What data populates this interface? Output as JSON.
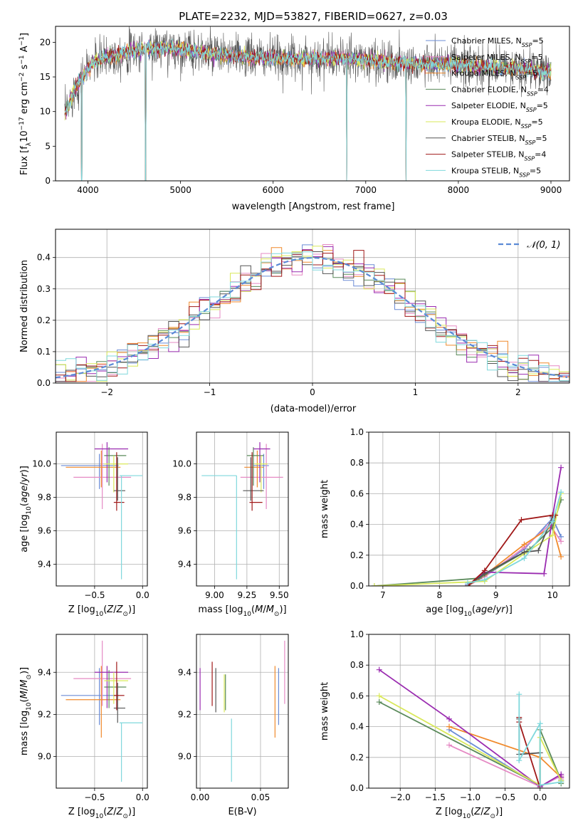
{
  "title": "PLATE=2232, MJD=53827, FIBERID=0627, z=0.03",
  "colors": {
    "Chabrier MILES": "#6b8cd6",
    "Salpeter MILES": "#e58ac4",
    "Kroupa MILES": "#f08a2c",
    "Chabrier ELODIE": "#5a8a5a",
    "Salpeter ELODIE": "#9a2bb0",
    "Kroupa ELODIE": "#d9e85a",
    "Chabrier STELIB": "#555555",
    "Salpeter STELIB": "#a01818",
    "Kroupa STELIB": "#7fd8dc"
  },
  "legend_spectrum": [
    {
      "name": "Chabrier MILES",
      "label_pre": "Chabrier MILES, N",
      "label_sub": "SSP",
      "label_post": "=5"
    },
    {
      "name": "Salpeter MILES",
      "label_pre": "Salpeter MILES, N",
      "label_sub": "SSP",
      "label_post": "=5"
    },
    {
      "name": "Kroupa MILES",
      "label_pre": "Kroupa MILES, N",
      "label_sub": "SSP",
      "label_post": "=5"
    },
    {
      "name": "Chabrier ELODIE",
      "label_pre": "Chabrier ELODIE, N",
      "label_sub": "SSP",
      "label_post": "=4"
    },
    {
      "name": "Salpeter ELODIE",
      "label_pre": "Salpeter ELODIE, N",
      "label_sub": "SSP",
      "label_post": "=5"
    },
    {
      "name": "Kroupa ELODIE",
      "label_pre": "Kroupa ELODIE, N",
      "label_sub": "SSP",
      "label_post": "=5"
    },
    {
      "name": "Chabrier STELIB",
      "label_pre": "Chabrier STELIB, N",
      "label_sub": "SSP",
      "label_post": "=5"
    },
    {
      "name": "Salpeter STELIB",
      "label_pre": "Salpeter STELIB, N",
      "label_sub": "SSP",
      "label_post": "=4"
    },
    {
      "name": "Kroupa STELIB",
      "label_pre": "Kroupa STELIB, N",
      "label_sub": "SSP",
      "label_post": "=5"
    }
  ],
  "chart_data": [
    {
      "id": "spectrum",
      "type": "line",
      "xlabel": "wavelength [Angstrom, rest frame]",
      "ylabel": "Flux [fλ10⁻¹⁷ erg cm⁻² s⁻¹ A⁻¹]",
      "xlim": [
        3650,
        9200
      ],
      "ylim": [
        0,
        22.3
      ],
      "xticks": [
        4000,
        5000,
        6000,
        7000,
        8000,
        9000
      ],
      "yticks": [
        0,
        5,
        10,
        15,
        20
      ],
      "continuum": {
        "x": [
          3750,
          3850,
          3950,
          4050,
          4200,
          4400,
          4600,
          4800,
          5000,
          5200,
          5400,
          5600,
          5800,
          6000,
          6200,
          6400,
          6600,
          6800,
          7000,
          7200,
          7400,
          7600,
          7800,
          8000,
          8200,
          8400,
          8600,
          8800,
          9000
        ],
        "y": [
          9.5,
          13.0,
          15.2,
          17.0,
          17.8,
          18.5,
          19.0,
          19.2,
          19.0,
          18.6,
          18.2,
          18.0,
          17.8,
          17.7,
          17.6,
          17.7,
          17.7,
          17.6,
          17.4,
          17.2,
          17.0,
          16.9,
          16.8,
          16.7,
          16.5,
          16.3,
          16.2,
          16.0,
          15.8
        ]
      },
      "dips": [
        {
          "x": 3934,
          "y": 0
        },
        {
          "x": 4622,
          "y": 0
        },
        {
          "x": 6795,
          "y": 0
        },
        {
          "x": 7435,
          "y": 0
        }
      ]
    },
    {
      "id": "residuals",
      "type": "histogram",
      "xlabel": "(data-model)/error",
      "ylabel": "Normed distribution",
      "xlim": [
        -2.5,
        2.5
      ],
      "ylim": [
        0,
        0.49
      ],
      "xticks": [
        -2,
        -1,
        0,
        1,
        2
      ],
      "yticks": [
        0.0,
        0.1,
        0.2,
        0.3,
        0.4
      ],
      "bin_width": 0.1,
      "reference_label": "𝒩(0, 1)",
      "reference_curve": "normal(0,1)"
    },
    {
      "id": "age-vs-Z",
      "type": "errorbar",
      "xlabel": "Z [log10(Z/Z⊙)]",
      "ylabel": "age  [log10(age/yr)]",
      "xlim": [
        -0.9,
        0.05
      ],
      "ylim": [
        9.27,
        10.19
      ],
      "xticks": [
        -0.5,
        0.0
      ],
      "yticks": [
        9.4,
        9.6,
        9.8,
        10.0
      ],
      "points": [
        {
          "model": "Chabrier MILES",
          "x": -0.45,
          "y": 9.99,
          "xerr": [
            0.4,
            0.2
          ],
          "yerr": [
            0.14,
            0.07
          ]
        },
        {
          "model": "Salpeter MILES",
          "x": -0.42,
          "y": 9.92,
          "xerr": [
            0.3,
            0.3
          ],
          "yerr": [
            0.19,
            0.2
          ]
        },
        {
          "model": "Kroupa MILES",
          "x": -0.43,
          "y": 9.98,
          "xerr": [
            0.37,
            0.2
          ],
          "yerr": [
            0.12,
            0.1
          ]
        },
        {
          "model": "Chabrier ELODIE",
          "x": -0.35,
          "y": 10.05,
          "xerr": [
            0.05,
            0.18
          ],
          "yerr": [
            0.18,
            0.05
          ]
        },
        {
          "model": "Salpeter ELODIE",
          "x": -0.37,
          "y": 10.09,
          "xerr": [
            0.13,
            0.22
          ],
          "yerr": [
            0.2,
            0.04
          ]
        },
        {
          "model": "Kroupa ELODIE",
          "x": -0.3,
          "y": 10.0,
          "xerr": [
            0.1,
            0.15
          ],
          "yerr": [
            0.17,
            0.05
          ]
        },
        {
          "model": "Chabrier STELIB",
          "x": -0.26,
          "y": 9.84,
          "xerr": [
            0.04,
            0.08
          ],
          "yerr": [
            0.06,
            0.2
          ]
        },
        {
          "model": "Salpeter STELIB",
          "x": -0.27,
          "y": 9.77,
          "xerr": [
            0.03,
            0.08
          ],
          "yerr": [
            0.05,
            0.3
          ]
        },
        {
          "model": "Kroupa STELIB",
          "x": -0.22,
          "y": 9.93,
          "xerr": [
            0.02,
            0.22
          ],
          "yerr": [
            0.62,
            0.0
          ]
        }
      ]
    },
    {
      "id": "age-vs-mass",
      "type": "errorbar",
      "xlabel": "mass [log10(M/M⊙)]",
      "ylabel": "",
      "xlim": [
        8.86,
        9.57
      ],
      "ylim": [
        9.27,
        10.19
      ],
      "xticks": [
        9.0,
        9.25,
        9.5
      ],
      "yticks": [
        9.4,
        9.6,
        9.8,
        10.0
      ],
      "points": [
        {
          "model": "Chabrier MILES",
          "x": 9.38,
          "y": 9.99,
          "xerr": [
            0.08,
            0.04
          ],
          "yerr": [
            0.14,
            0.07
          ]
        },
        {
          "model": "Salpeter MILES",
          "x": 9.4,
          "y": 9.92,
          "xerr": [
            0.2,
            0.13
          ],
          "yerr": [
            0.19,
            0.2
          ]
        },
        {
          "model": "Kroupa MILES",
          "x": 9.33,
          "y": 9.98,
          "xerr": [
            0.1,
            0.05
          ],
          "yerr": [
            0.12,
            0.1
          ]
        },
        {
          "model": "Chabrier ELODIE",
          "x": 9.3,
          "y": 10.05,
          "xerr": [
            0.05,
            0.08
          ],
          "yerr": [
            0.18,
            0.05
          ]
        },
        {
          "model": "Salpeter ELODIE",
          "x": 9.35,
          "y": 10.09,
          "xerr": [
            0.05,
            0.08
          ],
          "yerr": [
            0.2,
            0.04
          ]
        },
        {
          "model": "Kroupa ELODIE",
          "x": 9.36,
          "y": 10.0,
          "xerr": [
            0.05,
            0.05
          ],
          "yerr": [
            0.17,
            0.05
          ]
        },
        {
          "model": "Chabrier STELIB",
          "x": 9.28,
          "y": 9.84,
          "xerr": [
            0.06,
            0.1
          ],
          "yerr": [
            0.06,
            0.2
          ]
        },
        {
          "model": "Salpeter STELIB",
          "x": 9.29,
          "y": 9.77,
          "xerr": [
            0.02,
            0.08
          ],
          "yerr": [
            0.05,
            0.3
          ]
        },
        {
          "model": "Kroupa STELIB",
          "x": 9.17,
          "y": 9.93,
          "xerr": [
            0.27,
            0.0
          ],
          "yerr": [
            0.62,
            0.0
          ]
        }
      ]
    },
    {
      "id": "weight-vs-age",
      "type": "line",
      "xlabel": "age  [log10(age/yr)]",
      "ylabel": "mass weight",
      "xlim": [
        6.75,
        10.3
      ],
      "ylim": [
        0,
        1.0
      ],
      "xticks": [
        7,
        8,
        9,
        10
      ],
      "yticks": [
        0.0,
        0.2,
        0.4,
        0.6,
        0.8,
        1.0
      ],
      "series": [
        {
          "model": "Chabrier MILES",
          "x": [
            8.5,
            8.8,
            9.5,
            10.0,
            10.15
          ],
          "y": [
            0.01,
            0.06,
            0.24,
            0.44,
            0.32
          ]
        },
        {
          "model": "Salpeter MILES",
          "x": [
            8.5,
            8.8,
            9.5,
            9.95,
            10.15
          ],
          "y": [
            0.0,
            0.06,
            0.25,
            0.4,
            0.29
          ]
        },
        {
          "model": "Kroupa MILES",
          "x": [
            8.5,
            8.8,
            9.5,
            10.0,
            10.15
          ],
          "y": [
            0.0,
            0.07,
            0.27,
            0.39,
            0.19
          ]
        },
        {
          "model": "Chabrier ELODIE",
          "x": [
            6.85,
            8.7,
            9.6,
            10.0,
            10.15
          ],
          "y": [
            0.0,
            0.05,
            0.24,
            0.38,
            0.56
          ]
        },
        {
          "model": "Salpeter ELODIE",
          "x": [
            8.5,
            8.8,
            9.85,
            10.0,
            10.15
          ],
          "y": [
            0.0,
            0.09,
            0.08,
            0.45,
            0.77
          ]
        },
        {
          "model": "Kroupa ELODIE",
          "x": [
            6.85,
            8.8,
            9.5,
            10.0,
            10.15
          ],
          "y": [
            0.0,
            0.03,
            0.21,
            0.33,
            0.6
          ]
        },
        {
          "model": "Chabrier STELIB",
          "x": [
            8.5,
            8.8,
            9.5,
            9.75,
            10.0
          ],
          "y": [
            0.0,
            0.08,
            0.22,
            0.23,
            0.45
          ]
        },
        {
          "model": "Salpeter STELIB",
          "x": [
            8.5,
            8.8,
            9.45,
            10.0,
            10.05
          ],
          "y": [
            0.0,
            0.1,
            0.43,
            0.46,
            0.46
          ]
        },
        {
          "model": "Kroupa STELIB",
          "x": [
            8.5,
            8.8,
            9.5,
            10.0,
            10.15
          ],
          "y": [
            0.02,
            0.04,
            0.18,
            0.42,
            0.61
          ]
        }
      ]
    },
    {
      "id": "mass-vs-Z",
      "type": "errorbar",
      "xlabel": "Z [log10(Z/Z⊙)]",
      "ylabel": "mass [log10(M/M⊙)]",
      "xlim": [
        -0.9,
        0.05
      ],
      "ylim": [
        8.85,
        9.58
      ],
      "xticks": [
        -0.5,
        0.0
      ],
      "yticks": [
        9.0,
        9.2,
        9.4
      ],
      "points": [
        {
          "model": "Chabrier MILES",
          "x": -0.45,
          "y": 9.29,
          "xerr": [
            0.4,
            0.2
          ],
          "yerr": [
            0.14,
            0.13
          ]
        },
        {
          "model": "Salpeter MILES",
          "x": -0.42,
          "y": 9.37,
          "xerr": [
            0.3,
            0.3
          ],
          "yerr": [
            0.13,
            0.18
          ]
        },
        {
          "model": "Kroupa MILES",
          "x": -0.43,
          "y": 9.27,
          "xerr": [
            0.37,
            0.2
          ],
          "yerr": [
            0.18,
            0.16
          ]
        },
        {
          "model": "Chabrier ELODIE",
          "x": -0.35,
          "y": 9.33,
          "xerr": [
            0.05,
            0.18
          ],
          "yerr": [
            0.1,
            0.08
          ]
        },
        {
          "model": "Salpeter ELODIE",
          "x": -0.37,
          "y": 9.4,
          "xerr": [
            0.13,
            0.22
          ],
          "yerr": [
            0.17,
            0.03
          ]
        },
        {
          "model": "Kroupa ELODIE",
          "x": -0.3,
          "y": 9.36,
          "xerr": [
            0.1,
            0.15
          ],
          "yerr": [
            0.11,
            0.04
          ]
        },
        {
          "model": "Chabrier STELIB",
          "x": -0.26,
          "y": 9.23,
          "xerr": [
            0.04,
            0.08
          ],
          "yerr": [
            0.07,
            0.12
          ]
        },
        {
          "model": "Salpeter STELIB",
          "x": -0.27,
          "y": 9.29,
          "xerr": [
            0.03,
            0.08
          ],
          "yerr": [
            0.07,
            0.16
          ]
        },
        {
          "model": "Kroupa STELIB",
          "x": -0.22,
          "y": 9.16,
          "xerr": [
            0.02,
            0.22
          ],
          "yerr": [
            0.28,
            0.0
          ]
        }
      ]
    },
    {
      "id": "mass-vs-ebv",
      "type": "errorbar",
      "xlabel": "E(B-V)",
      "ylabel": "",
      "xlim": [
        -0.003,
        0.073
      ],
      "ylim": [
        8.85,
        9.58
      ],
      "xticks": [
        0.0,
        0.05
      ],
      "yticks": [
        9.0,
        9.2,
        9.4
      ],
      "points": [
        {
          "model": "Salpeter ELODIE",
          "x": 0.0,
          "y": 9.34,
          "xerr": [
            0,
            0
          ],
          "yerr": [
            0.12,
            0.08
          ]
        },
        {
          "model": "Salpeter STELIB",
          "x": 0.01,
          "y": 9.36,
          "xerr": [
            0,
            0
          ],
          "yerr": [
            0.12,
            0.09
          ]
        },
        {
          "model": "Chabrier STELIB",
          "x": 0.013,
          "y": 9.3,
          "xerr": [
            0,
            0
          ],
          "yerr": [
            0.09,
            0.12
          ]
        },
        {
          "model": "Kroupa ELODIE",
          "x": 0.02,
          "y": 9.31,
          "xerr": [
            0,
            0
          ],
          "yerr": [
            0.1,
            0.08
          ]
        },
        {
          "model": "Chabrier ELODIE",
          "x": 0.021,
          "y": 9.3,
          "xerr": [
            0,
            0
          ],
          "yerr": [
            0.08,
            0.09
          ]
        },
        {
          "model": "Kroupa STELIB",
          "x": 0.026,
          "y": 9.1,
          "xerr": [
            0,
            0
          ],
          "yerr": [
            0.22,
            0.08
          ]
        },
        {
          "model": "Kroupa MILES",
          "x": 0.062,
          "y": 9.26,
          "xerr": [
            0,
            0
          ],
          "yerr": [
            0.17,
            0.17
          ]
        },
        {
          "model": "Chabrier MILES",
          "x": 0.065,
          "y": 9.29,
          "xerr": [
            0,
            0
          ],
          "yerr": [
            0.14,
            0.13
          ]
        },
        {
          "model": "Salpeter MILES",
          "x": 0.07,
          "y": 9.4,
          "xerr": [
            0,
            0
          ],
          "yerr": [
            0.15,
            0.15
          ]
        }
      ]
    },
    {
      "id": "weight-vs-Z",
      "type": "line",
      "xlabel": "Z [log10(Z/Z⊙)]",
      "ylabel": "mass weight",
      "xlim": [
        -2.45,
        0.42
      ],
      "ylim": [
        0,
        1.0
      ],
      "xticks": [
        -2.0,
        -1.5,
        -1.0,
        -0.5,
        0.0
      ],
      "yticks": [
        0.0,
        0.2,
        0.4,
        0.6,
        0.8,
        1.0
      ],
      "series": [
        {
          "model": "Chabrier MILES",
          "x": [
            -1.3,
            0.0,
            0.3,
            0.3
          ],
          "y": [
            0.38,
            0.01,
            0.08,
            0.05
          ]
        },
        {
          "model": "Salpeter MILES",
          "x": [
            -1.3,
            0.0,
            0.3,
            0.3
          ],
          "y": [
            0.28,
            0.01,
            0.08,
            0.06
          ]
        },
        {
          "model": "Kroupa MILES",
          "x": [
            -1.3,
            0.0,
            0.3,
            0.3
          ],
          "y": [
            0.4,
            0.2,
            0.07,
            0.04
          ]
        },
        {
          "model": "Chabrier ELODIE",
          "x": [
            -2.3,
            0.0,
            0.0,
            0.3,
            0.3
          ],
          "y": [
            0.56,
            0.02,
            0.38,
            0.05,
            0.03
          ]
        },
        {
          "model": "Salpeter ELODIE",
          "x": [
            -2.3,
            -1.3,
            0.0,
            0.3,
            0.3
          ],
          "y": [
            0.77,
            0.45,
            0.01,
            0.09,
            0.07
          ]
        },
        {
          "model": "Kroupa ELODIE",
          "x": [
            -2.3,
            0.0,
            0.0,
            0.3,
            0.3
          ],
          "y": [
            0.6,
            0.02,
            0.33,
            0.05,
            0.04
          ]
        },
        {
          "model": "Chabrier STELIB",
          "x": [
            -0.3,
            -0.3,
            0.0,
            0.0
          ],
          "y": [
            0.45,
            0.22,
            0.23,
            0.0
          ]
        },
        {
          "model": "Salpeter STELIB",
          "x": [
            -0.3,
            -0.3,
            0.0
          ],
          "y": [
            0.46,
            0.43,
            0.0
          ]
        },
        {
          "model": "Kroupa STELIB",
          "x": [
            -0.3,
            -0.3,
            0.0,
            0.0,
            0.3
          ],
          "y": [
            0.61,
            0.18,
            0.42,
            0.02,
            0.04
          ]
        }
      ]
    }
  ]
}
